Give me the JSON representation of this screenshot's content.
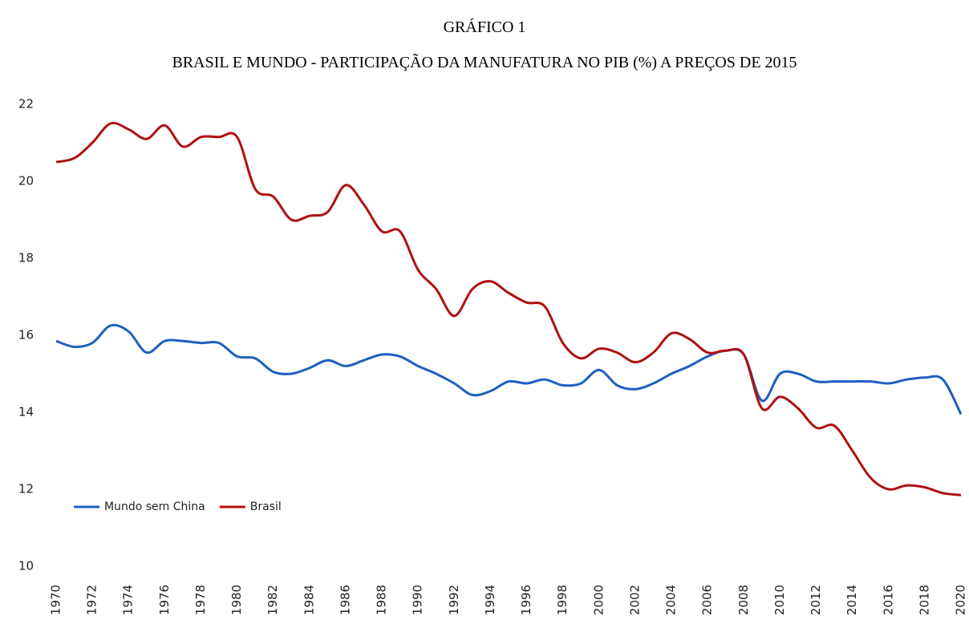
{
  "chart_data": {
    "type": "line",
    "title": "GRÁFICO 1",
    "subtitle": "BRASIL E MUNDO - PARTICIPAÇÃO DA MANUFATURA NO PIB (%) A PREÇOS DE 2015",
    "x": [
      1970,
      1971,
      1972,
      1973,
      1974,
      1975,
      1976,
      1977,
      1978,
      1979,
      1980,
      1981,
      1982,
      1983,
      1984,
      1985,
      1986,
      1987,
      1988,
      1989,
      1990,
      1991,
      1992,
      1993,
      1994,
      1995,
      1996,
      1997,
      1998,
      1999,
      2000,
      2001,
      2002,
      2003,
      2004,
      2005,
      2006,
      2007,
      2008,
      2009,
      2010,
      2011,
      2012,
      2013,
      2014,
      2015,
      2016,
      2017,
      2018,
      2019,
      2020
    ],
    "series": [
      {
        "name": "Mundo sem China",
        "color": "#1f5fbf",
        "values": [
          15.85,
          15.7,
          15.8,
          16.25,
          16.1,
          15.55,
          15.85,
          15.85,
          15.8,
          15.8,
          15.45,
          15.4,
          15.05,
          15.0,
          15.15,
          15.35,
          15.2,
          15.35,
          15.5,
          15.45,
          15.2,
          15.0,
          14.75,
          14.45,
          14.55,
          14.8,
          14.75,
          14.85,
          14.7,
          14.75,
          15.1,
          14.7,
          14.6,
          14.75,
          15.0,
          15.2,
          15.45,
          15.6,
          15.5,
          14.3,
          15.0,
          15.0,
          14.8,
          14.8,
          14.8,
          14.8,
          14.75,
          14.85,
          14.9,
          14.85,
          13.95
        ]
      },
      {
        "name": "Brasil",
        "color": "#b01010",
        "values": [
          20.5,
          20.6,
          21.0,
          21.5,
          21.35,
          21.1,
          21.45,
          20.9,
          21.15,
          21.15,
          21.15,
          19.8,
          19.6,
          19.0,
          19.1,
          19.2,
          19.9,
          19.4,
          18.7,
          18.7,
          17.7,
          17.2,
          16.5,
          17.2,
          17.4,
          17.1,
          16.85,
          16.75,
          15.8,
          15.4,
          15.65,
          15.55,
          15.3,
          15.55,
          16.05,
          15.9,
          15.55,
          15.6,
          15.5,
          14.1,
          14.4,
          14.1,
          13.6,
          13.65,
          13.0,
          12.3,
          12.0,
          12.1,
          12.05,
          11.9,
          11.85
        ]
      }
    ],
    "xlim": [
      1970,
      2020
    ],
    "xticks": [
      1970,
      1972,
      1974,
      1976,
      1978,
      1980,
      1982,
      1984,
      1986,
      1988,
      1990,
      1992,
      1994,
      1996,
      1998,
      2000,
      2002,
      2004,
      2006,
      2008,
      2010,
      2012,
      2014,
      2016,
      2018,
      2020
    ],
    "ylim": [
      10,
      22
    ],
    "yticks": [
      10,
      12,
      14,
      16,
      18,
      20,
      22
    ],
    "grid": false,
    "legend": "lower left"
  }
}
